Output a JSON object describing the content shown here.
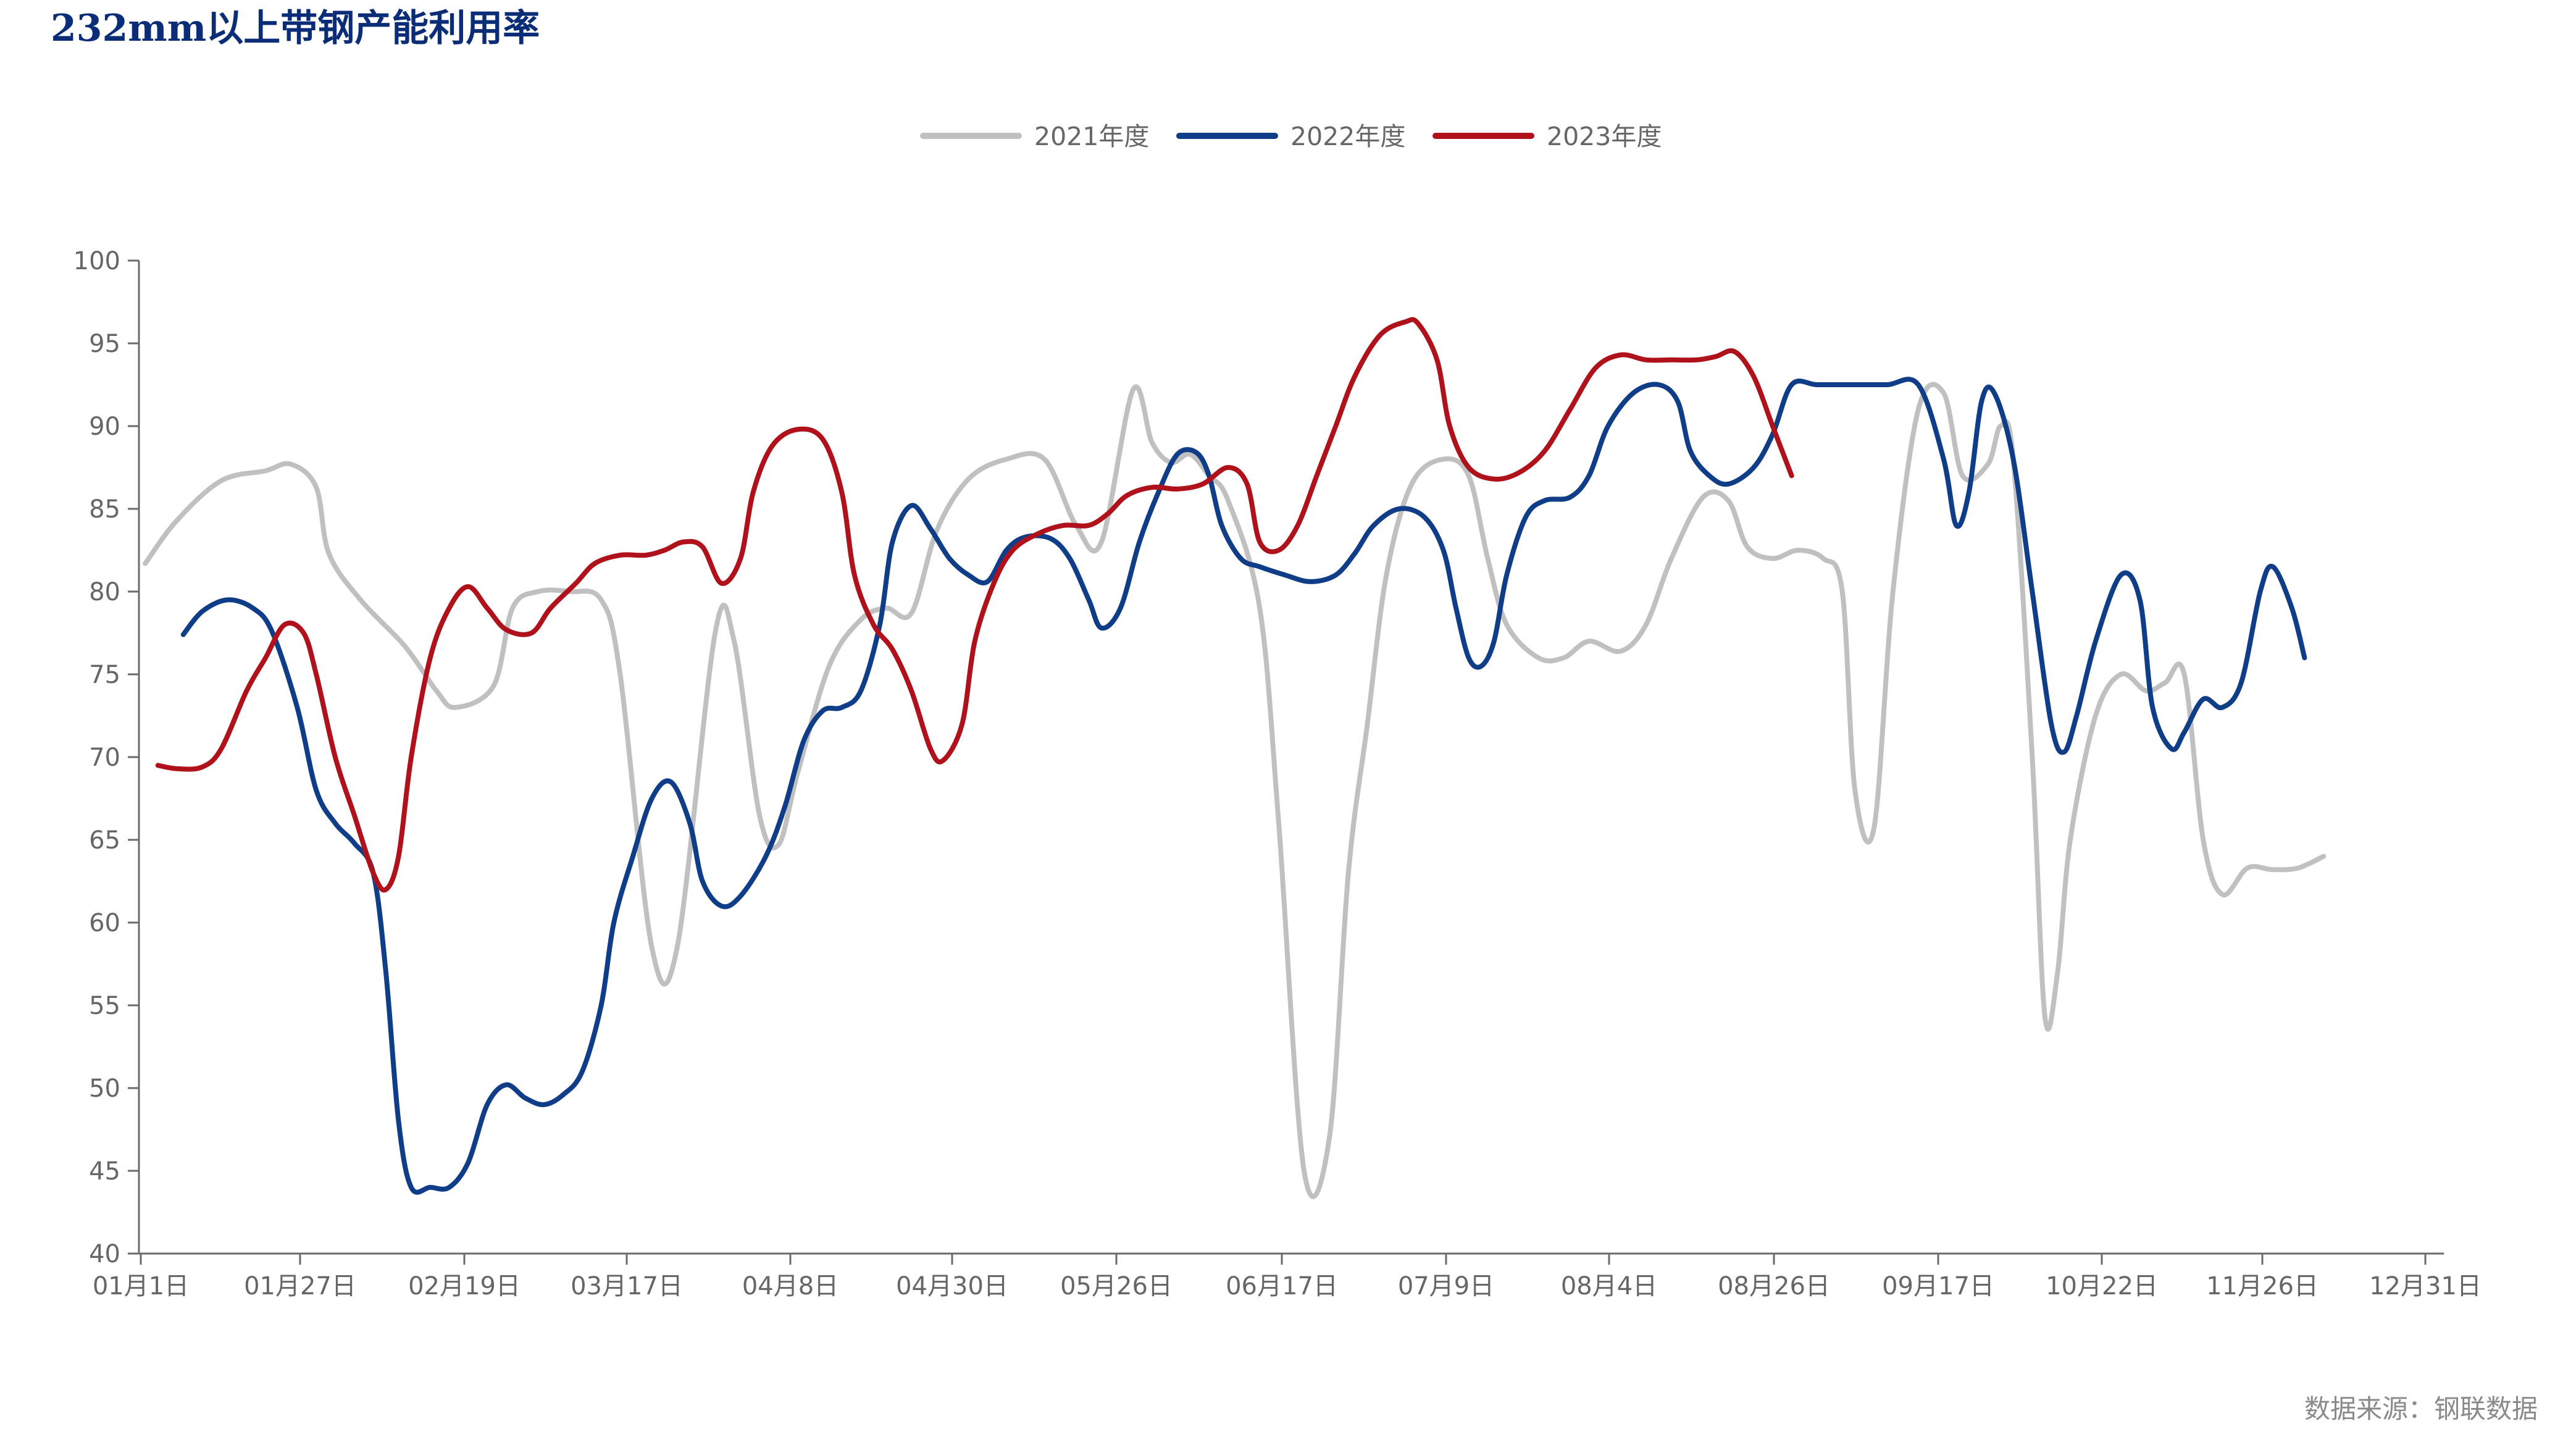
{
  "chart_data": {
    "type": "line",
    "title": "232mm以上带钢产能利用率",
    "xlabel": "",
    "ylabel": "",
    "source": "数据来源：钢联数据",
    "x_ticks": [
      "01月1日",
      "01月27日",
      "02月19日",
      "03月17日",
      "04月8日",
      "04月30日",
      "05月26日",
      "06月17日",
      "07月9日",
      "08月4日",
      "08月26日",
      "09月17日",
      "10月22日",
      "11月26日",
      "12月31日"
    ],
    "y_ticks": [
      100,
      95,
      90,
      85,
      80,
      75,
      70,
      65,
      60,
      55,
      50,
      45,
      40
    ],
    "ylim": [
      40,
      100
    ],
    "xlim": [
      0,
      364
    ],
    "legend_position": "top-center",
    "grid": false,
    "colors": {
      "2021年度": "#c0c0c0",
      "2022年度": "#0f3d87",
      "2023年度": "#b0121b"
    },
    "series": [
      {
        "name": "2021年度",
        "points": [
          [
            1,
            81.7
          ],
          [
            6,
            84.3
          ],
          [
            13,
            86.7
          ],
          [
            20,
            87.3
          ],
          [
            24,
            87.7
          ],
          [
            28,
            86.3
          ],
          [
            30,
            82.3
          ],
          [
            35,
            79.5
          ],
          [
            42,
            76.7
          ],
          [
            47,
            74.0
          ],
          [
            50,
            73.0
          ],
          [
            56,
            74.3
          ],
          [
            59,
            79.0
          ],
          [
            63,
            80.0
          ],
          [
            68,
            80.0
          ],
          [
            73,
            79.5
          ],
          [
            76,
            75.0
          ],
          [
            81,
            58.5
          ],
          [
            85,
            58.5
          ],
          [
            91,
            77.5
          ],
          [
            94,
            77.0
          ],
          [
            98,
            66.5
          ],
          [
            101,
            64.7
          ],
          [
            104,
            69.0
          ],
          [
            109,
            75.5
          ],
          [
            114,
            78.3
          ],
          [
            118,
            79.0
          ],
          [
            122,
            78.7
          ],
          [
            126,
            83.7
          ],
          [
            131,
            86.8
          ],
          [
            137,
            88.0
          ],
          [
            143,
            88.0
          ],
          [
            148,
            84.0
          ],
          [
            152,
            83.0
          ],
          [
            157,
            92.2
          ],
          [
            160,
            89.0
          ],
          [
            163,
            87.8
          ],
          [
            166,
            88.3
          ],
          [
            169,
            87.0
          ],
          [
            172,
            85.5
          ],
          [
            177,
            79.0
          ],
          [
            180,
            66.0
          ],
          [
            184,
            45.0
          ],
          [
            188,
            47.0
          ],
          [
            191,
            63.0
          ],
          [
            194,
            72.0
          ],
          [
            197,
            81.0
          ],
          [
            201,
            86.5
          ],
          [
            206,
            88.0
          ],
          [
            210,
            87.0
          ],
          [
            213,
            82.0
          ],
          [
            216,
            78.0
          ],
          [
            221,
            76.0
          ],
          [
            225,
            76.0
          ],
          [
            229,
            77.0
          ],
          [
            234,
            76.4
          ],
          [
            238,
            78.0
          ],
          [
            242,
            82.0
          ],
          [
            247,
            85.7
          ],
          [
            251,
            85.5
          ],
          [
            254,
            82.7
          ],
          [
            258,
            82.0
          ],
          [
            262,
            82.5
          ],
          [
            266,
            82.0
          ],
          [
            269,
            80.0
          ],
          [
            271,
            68.0
          ],
          [
            274,
            65.7
          ],
          [
            277,
            80.0
          ],
          [
            281,
            91.0
          ],
          [
            285,
            92.0
          ],
          [
            288,
            87.0
          ],
          [
            292,
            87.7
          ],
          [
            294,
            90.0
          ],
          [
            296,
            88.0
          ],
          [
            299,
            70.0
          ],
          [
            301,
            54.3
          ],
          [
            303,
            57.0
          ],
          [
            305,
            65.0
          ],
          [
            309,
            72.5
          ],
          [
            313,
            75.0
          ],
          [
            317,
            74.0
          ],
          [
            320,
            74.5
          ],
          [
            323,
            75.0
          ],
          [
            326,
            65.0
          ],
          [
            329,
            61.7
          ],
          [
            333,
            63.3
          ],
          [
            337,
            63.2
          ],
          [
            341,
            63.3
          ],
          [
            345,
            64.0
          ]
        ]
      },
      {
        "name": "2022年度",
        "points": [
          [
            7,
            77.4
          ],
          [
            10,
            78.8
          ],
          [
            14,
            79.5
          ],
          [
            18,
            79.0
          ],
          [
            21,
            77.6
          ],
          [
            25,
            73.0
          ],
          [
            28,
            68.0
          ],
          [
            31,
            66.0
          ],
          [
            34,
            64.8
          ],
          [
            37,
            63.0
          ],
          [
            39,
            57.0
          ],
          [
            41,
            48.0
          ],
          [
            43,
            44.0
          ],
          [
            46,
            44.0
          ],
          [
            49,
            44.0
          ],
          [
            52,
            45.5
          ],
          [
            55,
            49.0
          ],
          [
            58,
            50.2
          ],
          [
            61,
            49.4
          ],
          [
            64,
            49.0
          ],
          [
            67,
            49.6
          ],
          [
            70,
            51.0
          ],
          [
            73,
            55.0
          ],
          [
            75,
            60.0
          ],
          [
            78,
            64.0
          ],
          [
            81,
            67.5
          ],
          [
            84,
            68.5
          ],
          [
            87,
            66.0
          ],
          [
            89,
            62.5
          ],
          [
            92,
            61.0
          ],
          [
            95,
            61.6
          ],
          [
            99,
            64.0
          ],
          [
            102,
            67.0
          ],
          [
            105,
            71.0
          ],
          [
            108,
            72.8
          ],
          [
            111,
            73.0
          ],
          [
            114,
            74.0
          ],
          [
            117,
            78.0
          ],
          [
            119,
            83.0
          ],
          [
            122,
            85.2
          ],
          [
            125,
            83.8
          ],
          [
            128,
            82.0
          ],
          [
            131,
            81.0
          ],
          [
            134,
            80.6
          ],
          [
            137,
            82.5
          ],
          [
            140,
            83.3
          ],
          [
            144,
            83.2
          ],
          [
            147,
            82.0
          ],
          [
            150,
            79.5
          ],
          [
            152,
            77.8
          ],
          [
            155,
            79.0
          ],
          [
            158,
            83.0
          ],
          [
            161,
            86.0
          ],
          [
            164,
            88.3
          ],
          [
            167,
            88.4
          ],
          [
            169,
            87.0
          ],
          [
            171,
            84.0
          ],
          [
            174,
            82.0
          ],
          [
            177,
            81.5
          ],
          [
            181,
            81.0
          ],
          [
            185,
            80.6
          ],
          [
            189,
            81.0
          ],
          [
            192,
            82.3
          ],
          [
            195,
            84.0
          ],
          [
            199,
            85.0
          ],
          [
            203,
            84.5
          ],
          [
            206,
            82.5
          ],
          [
            208,
            79.0
          ],
          [
            210,
            76.0
          ],
          [
            212,
            75.5
          ],
          [
            214,
            77.0
          ],
          [
            216,
            81.0
          ],
          [
            219,
            84.5
          ],
          [
            222,
            85.5
          ],
          [
            226,
            85.7
          ],
          [
            229,
            87.0
          ],
          [
            232,
            90.0
          ],
          [
            236,
            92.0
          ],
          [
            240,
            92.5
          ],
          [
            243,
            91.5
          ],
          [
            245,
            88.5
          ],
          [
            248,
            87.0
          ],
          [
            251,
            86.5
          ],
          [
            255,
            87.5
          ],
          [
            258,
            89.5
          ],
          [
            261,
            92.5
          ],
          [
            265,
            92.5
          ],
          [
            270,
            92.5
          ],
          [
            276,
            92.5
          ],
          [
            281,
            92.5
          ],
          [
            285,
            88.0
          ],
          [
            287,
            84.0
          ],
          [
            289,
            86.0
          ],
          [
            291,
            91.5
          ],
          [
            293,
            92.0
          ],
          [
            296,
            88.0
          ],
          [
            299,
            80.0
          ],
          [
            302,
            72.0
          ],
          [
            304,
            70.3
          ],
          [
            306,
            72.5
          ],
          [
            309,
            77.0
          ],
          [
            313,
            81.0
          ],
          [
            316,
            79.5
          ],
          [
            318,
            73.0
          ],
          [
            321,
            70.5
          ],
          [
            323,
            71.5
          ],
          [
            326,
            73.5
          ],
          [
            329,
            73.0
          ],
          [
            332,
            74.5
          ],
          [
            335,
            80.0
          ],
          [
            337,
            81.5
          ],
          [
            340,
            79.0
          ],
          [
            342,
            76.0
          ]
        ]
      },
      {
        "name": "2023年度",
        "points": [
          [
            3,
            69.5
          ],
          [
            6,
            69.3
          ],
          [
            10,
            69.4
          ],
          [
            13,
            70.5
          ],
          [
            17,
            74.0
          ],
          [
            20,
            76.0
          ],
          [
            23,
            78.0
          ],
          [
            26,
            77.5
          ],
          [
            28,
            75.0
          ],
          [
            31,
            70.0
          ],
          [
            34,
            66.5
          ],
          [
            37,
            63.0
          ],
          [
            39,
            62.0
          ],
          [
            41,
            64.0
          ],
          [
            43,
            70.0
          ],
          [
            46,
            76.0
          ],
          [
            49,
            79.0
          ],
          [
            52,
            80.3
          ],
          [
            55,
            79.0
          ],
          [
            58,
            77.7
          ],
          [
            62,
            77.5
          ],
          [
            65,
            79.0
          ],
          [
            69,
            80.5
          ],
          [
            72,
            81.7
          ],
          [
            76,
            82.2
          ],
          [
            80,
            82.2
          ],
          [
            83,
            82.5
          ],
          [
            86,
            83.0
          ],
          [
            89,
            82.7
          ],
          [
            92,
            80.5
          ],
          [
            95,
            82.0
          ],
          [
            97,
            86.0
          ],
          [
            100,
            88.8
          ],
          [
            104,
            89.8
          ],
          [
            108,
            89.2
          ],
          [
            111,
            86.0
          ],
          [
            113,
            81.0
          ],
          [
            116,
            78.0
          ],
          [
            119,
            76.5
          ],
          [
            122,
            74.0
          ],
          [
            125,
            70.5
          ],
          [
            127,
            69.8
          ],
          [
            130,
            72.0
          ],
          [
            132,
            77.0
          ],
          [
            135,
            80.5
          ],
          [
            138,
            82.5
          ],
          [
            142,
            83.5
          ],
          [
            146,
            84.0
          ],
          [
            150,
            84.0
          ],
          [
            153,
            84.7
          ],
          [
            156,
            85.8
          ],
          [
            160,
            86.3
          ],
          [
            164,
            86.2
          ],
          [
            168,
            86.5
          ],
          [
            172,
            87.5
          ],
          [
            175,
            86.5
          ],
          [
            177,
            83.0
          ],
          [
            180,
            82.5
          ],
          [
            183,
            84.0
          ],
          [
            186,
            87.0
          ],
          [
            189,
            90.0
          ],
          [
            192,
            93.0
          ],
          [
            196,
            95.5
          ],
          [
            200,
            96.3
          ],
          [
            202,
            96.2
          ],
          [
            205,
            94.0
          ],
          [
            207,
            90.0
          ],
          [
            210,
            87.5
          ],
          [
            214,
            86.8
          ],
          [
            218,
            87.2
          ],
          [
            222,
            88.5
          ],
          [
            226,
            91.0
          ],
          [
            230,
            93.5
          ],
          [
            234,
            94.3
          ],
          [
            238,
            94.0
          ],
          [
            242,
            94.0
          ],
          [
            246,
            94.0
          ],
          [
            249,
            94.2
          ],
          [
            252,
            94.5
          ],
          [
            255,
            93.0
          ],
          [
            258,
            90.0
          ],
          [
            261,
            87.0
          ]
        ]
      }
    ]
  }
}
